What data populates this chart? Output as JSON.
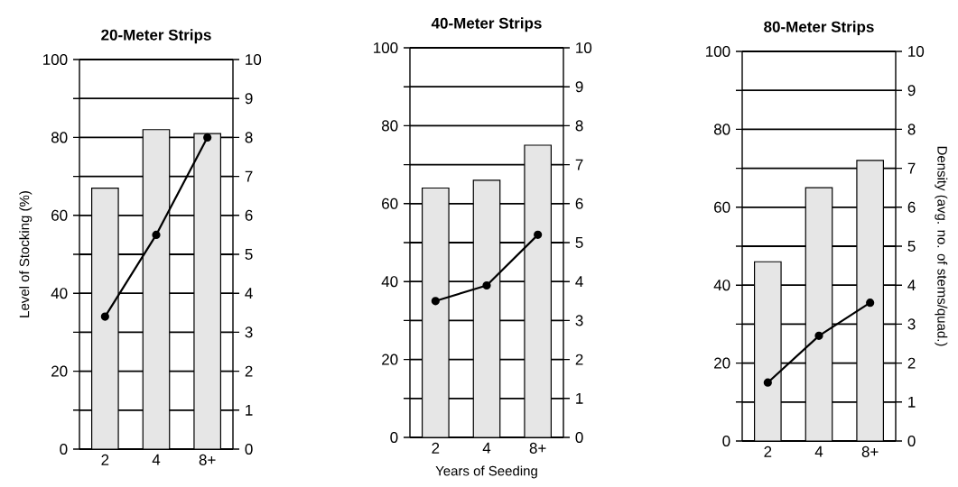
{
  "chart_data": [
    {
      "type": "bar",
      "title": "20-Meter Strips",
      "ylabel": "Level of Stocking (%)",
      "categories": [
        "2",
        "4",
        "8+"
      ],
      "series": [
        {
          "color": "#e6e6e6",
          "values": [
            67,
            82,
            81
          ]
        },
        {
          "type": "line",
          "axis": "y2",
          "color": "#000000",
          "values": [
            3.4,
            5.5,
            8.0
          ]
        }
      ],
      "ylim": [
        0,
        100
      ],
      "yticks": [
        0,
        {
          "value": 10,
          "label": null
        },
        20,
        {
          "value": 30,
          "label": null
        },
        40,
        {
          "value": 50,
          "label": null
        },
        60,
        {
          "value": 70,
          "label": null
        },
        80,
        {
          "value": 90,
          "label": null
        },
        100
      ],
      "y2lim": [
        0,
        10
      ],
      "y2ticks": [
        0,
        1,
        2,
        3,
        4,
        5,
        6,
        7,
        8,
        9,
        10
      ],
      "grid": "y",
      "marker": "circle"
    },
    {
      "type": "bar",
      "title": "40-Meter Strips",
      "xlabel": "Years of Seeding",
      "categories": [
        "2",
        "4",
        "8+"
      ],
      "series": [
        {
          "color": "#e6e6e6",
          "values": [
            64,
            66,
            75
          ]
        },
        {
          "type": "line",
          "axis": "y2",
          "color": "#000000",
          "values": [
            3.5,
            3.9,
            5.2
          ]
        }
      ],
      "ylim": [
        0,
        100
      ],
      "yticks": [
        0,
        {
          "value": 10,
          "label": null
        },
        20,
        {
          "value": 30,
          "label": null
        },
        40,
        {
          "value": 50,
          "label": null
        },
        60,
        {
          "value": 70,
          "label": null
        },
        80,
        {
          "value": 90,
          "label": null
        },
        100
      ],
      "y2lim": [
        0,
        10
      ],
      "y2ticks": [
        0,
        1,
        2,
        3,
        4,
        5,
        6,
        7,
        8,
        9,
        10
      ],
      "grid": "y",
      "marker": "circle"
    },
    {
      "type": "bar",
      "title": "80-Meter Strips",
      "y2label": "Density (avg. no. of stems/quad.)",
      "categories": [
        "2",
        "4",
        "8+"
      ],
      "series": [
        {
          "color": "#e6e6e6",
          "values": [
            46,
            65,
            72
          ]
        },
        {
          "type": "line",
          "axis": "y2",
          "color": "#000000",
          "values": [
            1.5,
            2.7,
            3.55
          ]
        }
      ],
      "ylim": [
        0,
        100
      ],
      "yticks": [
        0,
        {
          "value": 10,
          "label": null
        },
        20,
        {
          "value": 30,
          "label": null
        },
        40,
        {
          "value": 50,
          "label": null
        },
        60,
        {
          "value": 70,
          "label": null
        },
        80,
        {
          "value": 90,
          "label": null
        },
        100
      ],
      "y2lim": [
        0,
        10
      ],
      "y2ticks": [
        0,
        1,
        2,
        3,
        4,
        5,
        6,
        7,
        8,
        9,
        10
      ],
      "grid": "y",
      "marker": "circle"
    }
  ]
}
